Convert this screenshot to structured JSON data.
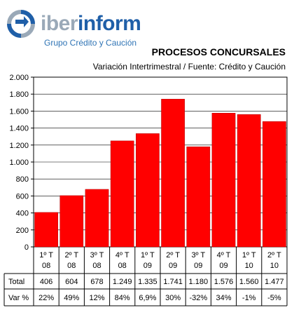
{
  "brand": {
    "name_part1": "iber",
    "name_part2": "inform",
    "tagline": "Grupo Crédito y Caución"
  },
  "colors": {
    "bar": "#ff0000",
    "brand_blue": "#1f5fa8",
    "brand_grey": "#9aa9b8"
  },
  "chart_data": {
    "type": "bar",
    "title": "PROCESOS CONCURSALES",
    "subtitle": "Variación Intertrimestral / Fuente: Crédito y Caución",
    "categories": [
      [
        "1º T",
        "08"
      ],
      [
        "2º T",
        "08"
      ],
      [
        "3º T",
        "08"
      ],
      [
        "4º T",
        "08"
      ],
      [
        "1º T",
        "09"
      ],
      [
        "2º T",
        "09"
      ],
      [
        "3º T",
        "09"
      ],
      [
        "4º T",
        "09"
      ],
      [
        "1º T",
        "10"
      ],
      [
        "2º T",
        "10"
      ]
    ],
    "values": [
      406,
      604,
      678,
      1249,
      1335,
      1741,
      1180,
      1576,
      1560,
      1477
    ],
    "ylim": [
      0,
      2000
    ],
    "yticks": [
      0,
      200,
      400,
      600,
      800,
      1000,
      1200,
      1400,
      1600,
      1800,
      2000
    ],
    "ytick_labels": [
      "0",
      "200",
      "400",
      "600",
      "800",
      "1.000",
      "1.200",
      "1.400",
      "1.600",
      "1.800",
      "2.000"
    ],
    "grid": true,
    "table": {
      "row_labels": [
        "Total",
        "Var %"
      ],
      "total": [
        "406",
        "604",
        "678",
        "1.249",
        "1.335",
        "1.741",
        "1.180",
        "1.576",
        "1.560",
        "1.477"
      ],
      "var_pct": [
        "22%",
        "49%",
        "12%",
        "84%",
        "6,9%",
        "30%",
        "-32%",
        "34%",
        "-1%",
        "-5%"
      ]
    }
  }
}
